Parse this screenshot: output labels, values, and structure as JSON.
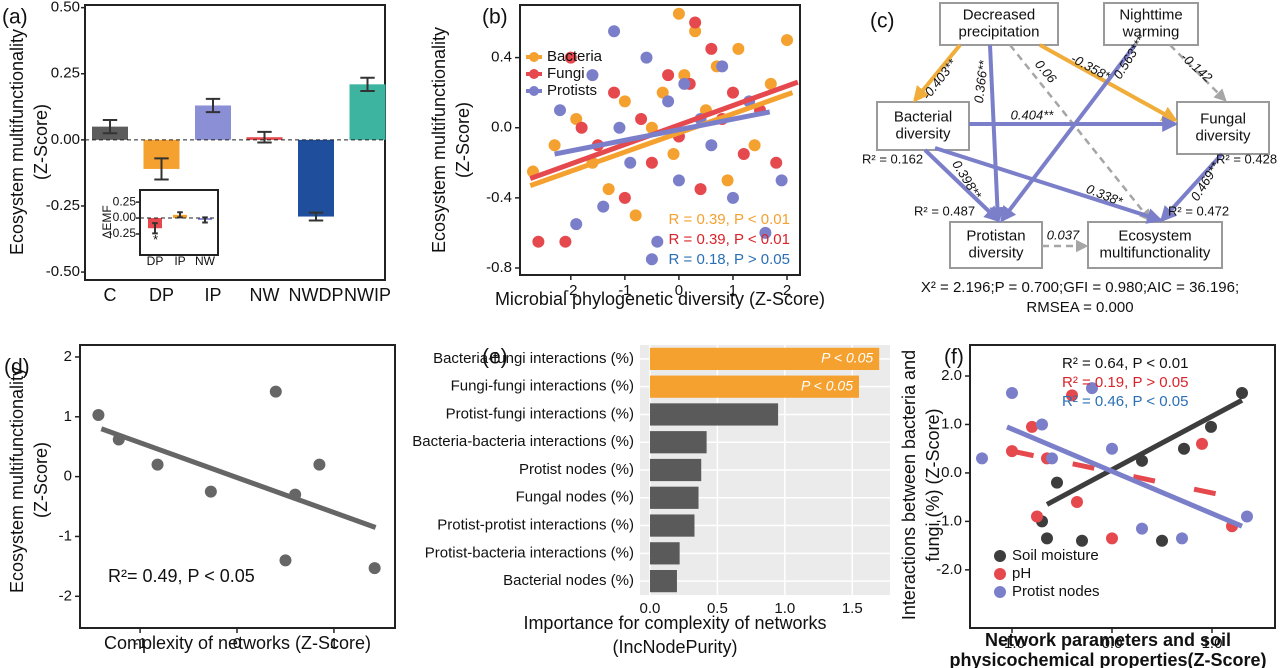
{
  "chart_data": [
    {
      "panel": "(a)",
      "type": "bar",
      "ylabel": [
        "Ecosystem multifunctionality",
        "(Z-Score)"
      ],
      "categories": [
        "C",
        "DP",
        "IP",
        "NW",
        "NWDP",
        "NWIP"
      ],
      "values": [
        0.05,
        -0.11,
        0.13,
        0.01,
        -0.29,
        0.21
      ],
      "errors": [
        0.025,
        0.04,
        0.025,
        0.02,
        0.015,
        0.025
      ],
      "colors": [
        "#5c5c5c",
        "#f5a12f",
        "#8b8fd6",
        "#e5484d",
        "#1f4e9c",
        "#3cb4a0"
      ],
      "ylim": [
        -0.53,
        0.51
      ],
      "yticks": [
        {
          "value": 0.5,
          "label": "0.50"
        },
        {
          "value": 0.25,
          "label": "0.25"
        },
        {
          "value": 0,
          "label": "0.00"
        },
        {
          "value": -0.25,
          "label": "-0.25"
        },
        {
          "value": -0.5,
          "label": "-0.50"
        }
      ],
      "inset": {
        "type": "bar",
        "ylabel": "ΔEMF",
        "categories": [
          "DP",
          "IP",
          "NW"
        ],
        "values": [
          -0.16,
          0.05,
          -0.03
        ],
        "errors": [
          0.08,
          0.04,
          0.04
        ],
        "colors": [
          "#e5484d",
          "#f5a12f",
          "#8b8fd6"
        ],
        "ylim": [
          -0.58,
          0.44
        ],
        "yticks": [
          {
            "value": 0.25,
            "label": "0.25"
          },
          {
            "value": 0,
            "label": "0.00"
          },
          {
            "value": -0.25,
            "label": "-0.25"
          }
        ],
        "annotation": "*"
      }
    },
    {
      "panel": "(b)",
      "type": "scatter",
      "xlabel": "Microbial phylogenetic diversity (Z-Score)",
      "ylabel": [
        "Ecosystem multifunctionality",
        "(Z-Score)"
      ],
      "xlim": [
        -2.94,
        2.24
      ],
      "ylim": [
        -0.84,
        0.7
      ],
      "xticks": [
        -2,
        -1,
        0,
        1,
        2
      ],
      "yticks": [
        0.4,
        {
          "value": 0,
          "label": "0.0"
        },
        -0.4,
        -0.8
      ],
      "legend": "top-left",
      "series": [
        {
          "name": "Bacteria",
          "color": "#f5a12f",
          "annotation": "R = 0.39, P < 0.01",
          "annotation_color": "#f5a12f",
          "x": [
            -2.7,
            -2.3,
            -1.9,
            -1.6,
            -1.3,
            -1.0,
            -0.8,
            -0.5,
            -0.3,
            -0.1,
            0.1,
            0.3,
            0.5,
            0.7,
            0.9,
            1.1,
            1.4,
            1.7,
            2.0,
            0.0
          ],
          "values": [
            -0.25,
            -0.1,
            0.05,
            -0.2,
            -0.35,
            0.15,
            -0.5,
            0.0,
            0.2,
            -0.15,
            0.3,
            0.55,
            0.1,
            0.35,
            -0.3,
            0.45,
            -0.1,
            0.25,
            0.5,
            0.65
          ],
          "fit": {
            "x": [
              -2.75,
              2.1
            ],
            "y": [
              -0.33,
              0.2
            ]
          }
        },
        {
          "name": "Fungi",
          "color": "#e5484d",
          "annotation": "R = 0.39, P < 0.01",
          "annotation_color": "#d9232a",
          "x": [
            -2.6,
            -2.1,
            -1.8,
            -1.5,
            -1.2,
            -1.0,
            -0.7,
            -0.5,
            -0.2,
            0.0,
            0.2,
            0.4,
            0.6,
            0.8,
            1.0,
            1.2,
            1.5,
            1.8,
            -2.0,
            0.3
          ],
          "values": [
            -0.65,
            -0.65,
            0.0,
            -0.1,
            0.2,
            -0.4,
            0.05,
            -0.2,
            0.3,
            -0.05,
            0.25,
            -0.35,
            0.45,
            0.05,
            0.2,
            -0.15,
            0.1,
            -0.2,
            0.4,
            0.6
          ],
          "fit": {
            "x": [
              -2.75,
              2.2
            ],
            "y": [
              -0.29,
              0.26
            ]
          }
        },
        {
          "name": "Protists",
          "color": "#7b7fc9",
          "annotation": "R = 0.18, P > 0.05",
          "annotation_color": "#2a6fb5",
          "x": [
            -2.2,
            -1.9,
            -1.6,
            -1.4,
            -1.1,
            -0.9,
            -0.6,
            -0.4,
            -0.2,
            0.0,
            0.1,
            0.4,
            0.6,
            0.8,
            1.0,
            1.3,
            1.6,
            1.9,
            -1.2,
            -0.5
          ],
          "values": [
            0.1,
            -0.55,
            0.3,
            -0.45,
            0.0,
            -0.2,
            0.4,
            -0.65,
            0.15,
            -0.3,
            0.25,
            0.05,
            -0.1,
            0.35,
            -0.4,
            0.15,
            -0.6,
            -0.3,
            0.55,
            -0.75
          ],
          "fit": {
            "x": [
              -2.3,
              1.68
            ],
            "y": [
              -0.15,
              0.09
            ]
          }
        }
      ]
    },
    {
      "panel": "(d)",
      "type": "scatter",
      "xlabel": "Complexity of networks (Z-Score)",
      "ylabel": [
        "Ecosystem multifunctionality",
        "(Z-Score)"
      ],
      "xlim": [
        -1.62,
        1.63
      ],
      "ylim": [
        -2.53,
        2.2
      ],
      "xticks": [
        -1,
        0,
        1
      ],
      "yticks": [
        2,
        1,
        0,
        -1,
        -2
      ],
      "series": [
        {
          "color": "#666666",
          "annotation": "R²= 0.49, P < 0.05",
          "annotation_color": "#111111",
          "x": [
            -1.43,
            -1.22,
            -0.82,
            -0.27,
            0.4,
            0.6,
            0.5,
            0.85,
            1.42
          ],
          "values": [
            1.03,
            0.62,
            0.2,
            -0.25,
            1.42,
            -0.3,
            -1.4,
            0.2,
            -1.53
          ],
          "fit": {
            "x": [
              -1.4,
              1.43
            ],
            "y": [
              0.8,
              -0.85
            ]
          }
        }
      ]
    },
    {
      "panel": "(e)",
      "type": "barh",
      "xlabel": [
        "Importance for complexity of  networks",
        "(IncNodePurity)"
      ],
      "categories": [
        "Bacteria-fungi interactions (%)",
        "Fungi-fungi interactions (%)",
        "Protist-fungi interactions (%)",
        "Bacteria-bacteria interactions (%)",
        "Protist nodes (%)",
        "Fungal nodes (%)",
        "Protist-protist interactions (%)",
        "Protist-bacteria interactions (%)",
        "Bacterial nodes (%)"
      ],
      "values": [
        1.7,
        1.55,
        0.95,
        0.42,
        0.38,
        0.36,
        0.33,
        0.22,
        0.2
      ],
      "colors": [
        "#f5a12f",
        "#f5a12f",
        "#5a5a5a",
        "#5a5a5a",
        "#5a5a5a",
        "#5a5a5a",
        "#5a5a5a",
        "#5a5a5a",
        "#5a5a5a"
      ],
      "bar_notes": [
        "P < 0.05",
        "P < 0.05"
      ],
      "xlim": [
        -0.074,
        1.78
      ],
      "xticks": [
        {
          "value": 0,
          "label": "0.0"
        },
        0.5,
        {
          "value": 1,
          "label": "1.0"
        },
        1.5
      ],
      "grid": true
    },
    {
      "panel": "(f)",
      "type": "scatter",
      "xlabel": [
        "Network parameters and soil",
        "physicochemical properties(Z-Score)"
      ],
      "ylabel": [
        "Interactions between bacteria and",
        "fungi (%) (Z-Score)"
      ],
      "xlim": [
        -1.42,
        1.63
      ],
      "ylim": [
        -3.2,
        2.64
      ],
      "xticks": [
        {
          "value": -1,
          "label": "-1.0"
        },
        {
          "value": 0,
          "label": "0.0"
        },
        {
          "value": 1,
          "label": "1.0"
        }
      ],
      "yticks": [
        {
          "value": 2,
          "label": "2.0"
        },
        {
          "value": 1,
          "label": "1.0"
        },
        {
          "value": 0,
          "label": "0.0"
        },
        {
          "value": -1,
          "label": "-1.0"
        },
        {
          "value": -2,
          "label": "-2.0"
        }
      ],
      "legend": "bottom-left",
      "series": [
        {
          "name": "Soil moisture",
          "color": "#3d3d3d",
          "annotation": "R² = 0.64, P < 0.01",
          "annotation_color": "#111111",
          "x": [
            1.3,
            0.99,
            0.72,
            0.3,
            -0.55,
            -0.7,
            -0.65,
            0.5,
            -0.3
          ],
          "values": [
            1.65,
            0.95,
            0.5,
            0.25,
            -0.2,
            -1.0,
            -1.35,
            -1.4,
            -1.4
          ],
          "fit": {
            "x": [
              -0.65,
              1.3
            ],
            "y": [
              -0.65,
              1.5
            ]
          }
        },
        {
          "name": "pH",
          "color": "#e5484d",
          "annotation": "R² = 0.19, P > 0.05",
          "annotation_color": "#d9232a",
          "dashed": true,
          "x": [
            -1.0,
            -0.8,
            -0.65,
            -0.4,
            -0.75,
            0.0,
            0.9,
            1.2,
            -0.35
          ],
          "values": [
            0.45,
            0.95,
            0.3,
            1.6,
            -0.9,
            -1.35,
            0.6,
            -1.1,
            -0.6
          ],
          "fit": {
            "x": [
              -1.0,
              1.2
            ],
            "y": [
              0.45,
              -0.5
            ]
          }
        },
        {
          "name": "Protist nodes",
          "color": "#7b7fc9",
          "annotation": "R² = 0.46, P < 0.05",
          "annotation_color": "#2a6fb5",
          "x": [
            -1.3,
            -1.0,
            -0.7,
            -0.2,
            0.3,
            0.0,
            1.35,
            0.7,
            -0.6
          ],
          "values": [
            0.3,
            1.65,
            1.0,
            1.75,
            -1.15,
            0.5,
            -0.9,
            -1.35,
            0.3
          ],
          "fit": {
            "x": [
              -1.05,
              1.3
            ],
            "y": [
              0.95,
              -1.1
            ]
          }
        }
      ]
    }
  ],
  "path_model": {
    "panel": "(c)",
    "nodes": [
      {
        "label": [
          "Decreased",
          "precipitation"
        ]
      },
      {
        "label": [
          "Nighttime",
          "warming"
        ]
      },
      {
        "label": [
          "Bacterial",
          "diversity"
        ]
      },
      {
        "label": [
          "Fungal",
          "diversity"
        ]
      },
      {
        "label": [
          "Protistan",
          "diversity"
        ]
      },
      {
        "label": [
          "Ecosystem",
          "multifunctionality"
        ]
      }
    ],
    "edges": [
      {
        "from": 0,
        "to": 2,
        "label": "-0.403**",
        "sign": "negative"
      },
      {
        "from": 0,
        "to": 3,
        "label": "-0.358*",
        "sign": "negative"
      },
      {
        "from": 0,
        "to": 4,
        "label": "0.366**",
        "sign": "positive"
      },
      {
        "from": 0,
        "to": 5,
        "label": "0.06",
        "sign": "ns"
      },
      {
        "from": 1,
        "to": 4,
        "label": "0.563***",
        "sign": "positive"
      },
      {
        "from": 1,
        "to": 3,
        "label": "-0.142",
        "sign": "ns"
      },
      {
        "from": 2,
        "to": 3,
        "label": "0.404**",
        "sign": "positive"
      },
      {
        "from": 2,
        "to": 4,
        "label": "0.398**",
        "sign": "positive"
      },
      {
        "from": 2,
        "to": 5,
        "label": "0.338*",
        "sign": "positive"
      },
      {
        "from": 3,
        "to": 5,
        "label": "0.469**",
        "sign": "positive"
      },
      {
        "from": 4,
        "to": 5,
        "label": "0.037",
        "sign": "ns"
      }
    ],
    "r2": [
      "R² = 0.162",
      "R² = 0.428",
      "R² = 0.487",
      "R² = 0.472"
    ],
    "fit": [
      "X² = 2.196;P = 0.700;GFI = 0.980;AIC = 36.196;",
      "RMSEA = 0.000"
    ],
    "colors": {
      "negative": "#f0ad3a",
      "positive": "#7b7fc9",
      "ns": "#a6a6a6"
    }
  }
}
